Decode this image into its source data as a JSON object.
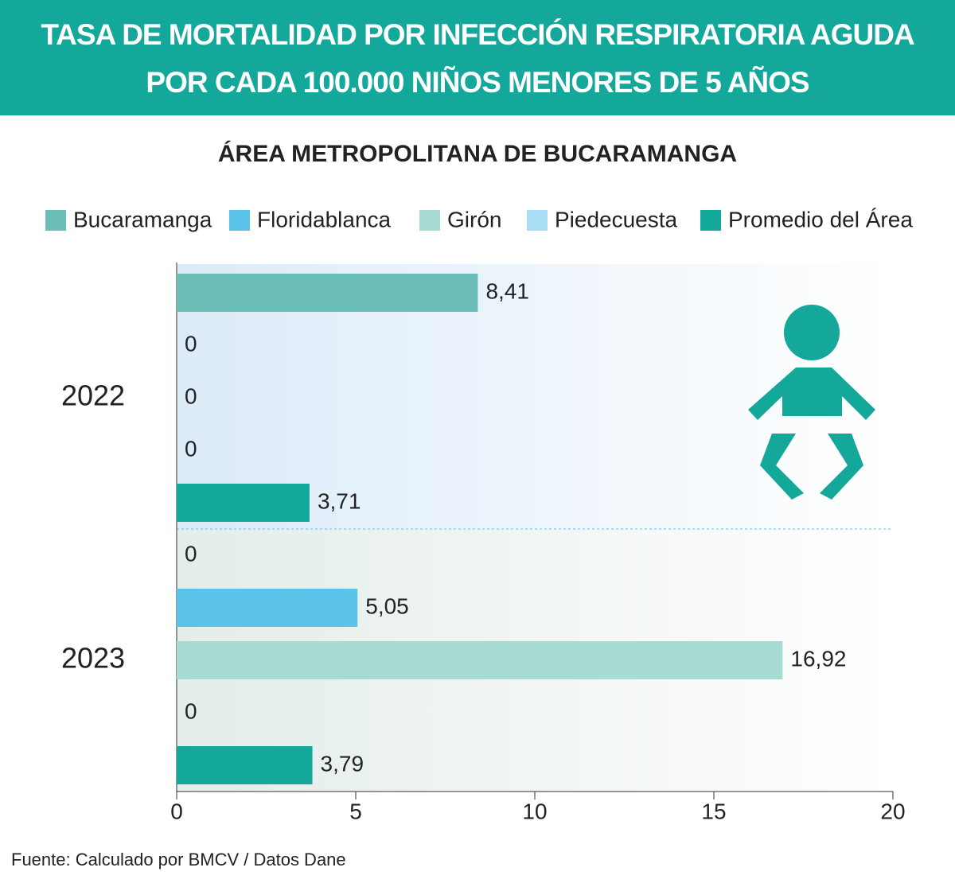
{
  "chart_data": {
    "type": "bar",
    "orientation": "horizontal",
    "title": "TASA DE MORTALIDAD POR INFECCIÓN RESPIRATORIA AGUDA POR CADA 100.000 NIÑOS MENORES DE 5 AÑOS",
    "subtitle": "ÁREA METROPOLITANA DE BUCARAMANGA",
    "source": "Fuente: Calculado por BMCV / Datos Dane",
    "categories": [
      "2022",
      "2023"
    ],
    "series": [
      {
        "name": "Bucaramanga",
        "color": "#6bbfb8",
        "values": [
          8.41,
          0
        ],
        "value_labels": [
          "8,41",
          "0"
        ]
      },
      {
        "name": "Floridablanca",
        "color": "#5bc3ea",
        "values": [
          0,
          5.05
        ],
        "value_labels": [
          "0",
          "5,05"
        ]
      },
      {
        "name": "Girón",
        "color": "#a8dbd3",
        "values": [
          0,
          16.92
        ],
        "value_labels": [
          "0",
          "16,92"
        ]
      },
      {
        "name": "Piedecuesta",
        "color": "#a9dcf5",
        "values": [
          0,
          0
        ],
        "value_labels": [
          "0",
          "0"
        ]
      },
      {
        "name": "Promedio del Área",
        "color": "#14a89a",
        "values": [
          3.71,
          3.79
        ],
        "value_labels": [
          "3,71",
          "3,79"
        ]
      }
    ],
    "xlim": [
      0,
      20
    ],
    "xticks": [
      0,
      5,
      10,
      15,
      20
    ],
    "grid": false,
    "legend": "top"
  }
}
